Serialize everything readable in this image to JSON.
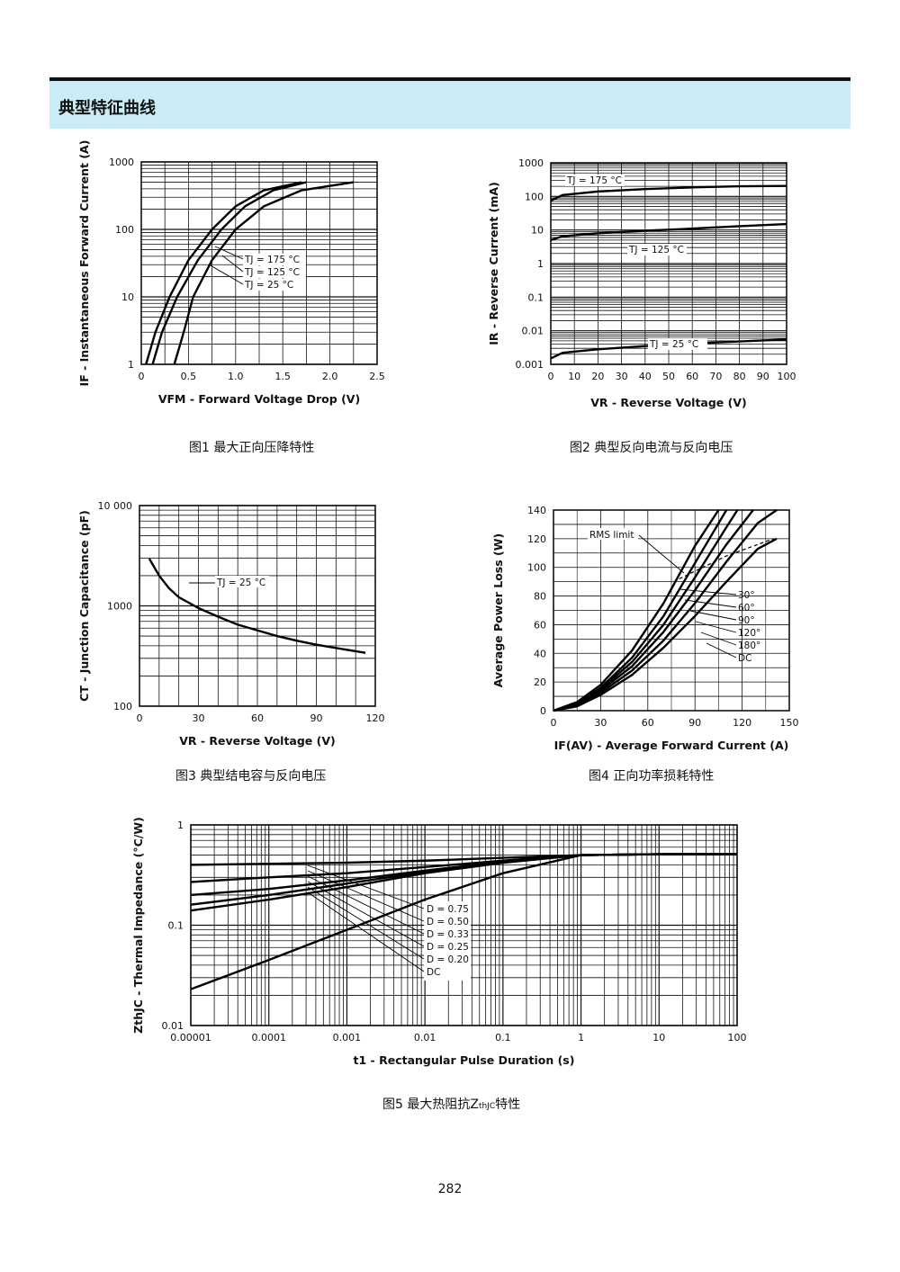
{
  "header": {
    "title": "典型特征曲线"
  },
  "page_number": "282",
  "captions": {
    "fig1": "图1  最大正向压降特性",
    "fig2": "图2  典型反向电流与反向电压",
    "fig3": "图3  典型结电容与反向电压",
    "fig4": "图4  正向功率损耗特性",
    "fig5": "图5  最大热阻抗Z"
  },
  "chart_data": [
    {
      "id": "fig1",
      "type": "line",
      "xlabel": "VFM - Forward Voltage Drop (V)",
      "ylabel": "IF - Instantaneous Forward Current (A)",
      "xscale": "linear",
      "yscale": "log",
      "xlim": [
        0,
        2.5
      ],
      "ylim": [
        1,
        1000
      ],
      "xticks": [
        "0",
        "0.5",
        "1.0",
        "1.5",
        "2.0",
        "2.5"
      ],
      "yticks": [
        "1",
        "10",
        "100",
        "1000"
      ],
      "series": [
        {
          "name": "TJ = 175 °C",
          "x": [
            0.05,
            0.15,
            0.3,
            0.5,
            0.75,
            1.0,
            1.3,
            1.7
          ],
          "y": [
            1,
            3,
            10,
            35,
            100,
            220,
            380,
            500
          ]
        },
        {
          "name": "TJ = 125 °C",
          "x": [
            0.12,
            0.22,
            0.38,
            0.6,
            0.85,
            1.1,
            1.4,
            1.75
          ],
          "y": [
            1,
            3,
            10,
            35,
            100,
            220,
            380,
            500
          ]
        },
        {
          "name": "TJ = 25 °C",
          "x": [
            0.35,
            0.45,
            0.55,
            0.75,
            1.0,
            1.3,
            1.7,
            2.25
          ],
          "y": [
            1,
            3,
            10,
            35,
            100,
            220,
            380,
            500
          ]
        }
      ],
      "annotations": [
        "TJ = 175 °C",
        "TJ = 125 °C",
        "TJ = 25 °C"
      ]
    },
    {
      "id": "fig2",
      "type": "line",
      "xlabel": "VR - Reverse Voltage (V)",
      "ylabel": "IR - Reverse Current (mA)",
      "xscale": "linear",
      "yscale": "log",
      "xlim": [
        0,
        100
      ],
      "ylim": [
        0.001,
        1000
      ],
      "xticks": [
        "0",
        "10",
        "20",
        "30",
        "40",
        "50",
        "60",
        "70",
        "80",
        "90",
        "100"
      ],
      "yticks": [
        "0.001",
        "0.01",
        "0.1",
        "1",
        "10",
        "100",
        "1000"
      ],
      "series": [
        {
          "name": "TJ = 175 °C",
          "x": [
            0,
            5,
            20,
            40,
            60,
            80,
            100
          ],
          "y": [
            75,
            110,
            140,
            165,
            185,
            200,
            205
          ]
        },
        {
          "name": "TJ = 125 °C",
          "x": [
            0,
            5,
            20,
            40,
            60,
            80,
            100
          ],
          "y": [
            5,
            6.5,
            8,
            9.5,
            11,
            13,
            15
          ]
        },
        {
          "name": "TJ = 25 °C",
          "x": [
            0,
            5,
            20,
            40,
            60,
            80,
            100
          ],
          "y": [
            0.0015,
            0.0022,
            0.0028,
            0.0035,
            0.0042,
            0.0048,
            0.0055
          ]
        }
      ],
      "annotations": [
        "TJ = 175 °C",
        "TJ = 125 °C",
        "TJ = 25 °C"
      ]
    },
    {
      "id": "fig3",
      "type": "line",
      "xlabel": "VR - Reverse Voltage (V)",
      "ylabel": "CT - Junction Capacitance (pF)",
      "xscale": "linear",
      "yscale": "log",
      "xlim": [
        0,
        120
      ],
      "ylim": [
        100,
        10000
      ],
      "xticks": [
        "0",
        "30",
        "60",
        "90",
        "120"
      ],
      "yticks": [
        "100",
        "1000",
        "10 000"
      ],
      "series": [
        {
          "name": "TJ = 25 °C",
          "x": [
            5,
            10,
            15,
            20,
            30,
            40,
            50,
            60,
            70,
            80,
            90,
            100,
            115
          ],
          "y": [
            2950,
            2000,
            1500,
            1220,
            950,
            780,
            650,
            570,
            500,
            450,
            410,
            380,
            340
          ]
        }
      ],
      "annotations": [
        "TJ = 25 °C"
      ]
    },
    {
      "id": "fig4",
      "type": "line",
      "xlabel": "IF(AV) - Average Forward Current (A)",
      "ylabel": "Average Power Loss (W)",
      "xscale": "linear",
      "yscale": "linear",
      "xlim": [
        0,
        150
      ],
      "ylim": [
        0,
        140
      ],
      "xticks": [
        "0",
        "30",
        "60",
        "90",
        "120",
        "150"
      ],
      "yticks": [
        "0",
        "20",
        "40",
        "60",
        "80",
        "100",
        "120",
        "140"
      ],
      "series": [
        {
          "name": "30°",
          "x": [
            0,
            15,
            30,
            50,
            70,
            90,
            105
          ],
          "y": [
            0,
            6,
            18,
            42,
            75,
            115,
            140
          ]
        },
        {
          "name": "60°",
          "x": [
            0,
            15,
            30,
            50,
            70,
            90,
            110
          ],
          "y": [
            0,
            5,
            16,
            37,
            66,
            103,
            140
          ]
        },
        {
          "name": "90°",
          "x": [
            0,
            15,
            30,
            50,
            70,
            90,
            110,
            117
          ],
          "y": [
            0,
            4.5,
            15,
            34,
            60,
            93,
            128,
            140
          ]
        },
        {
          "name": "120°",
          "x": [
            0,
            15,
            30,
            50,
            70,
            90,
            110,
            127
          ],
          "y": [
            0,
            4,
            14,
            31,
            55,
            84,
            116,
            140
          ]
        },
        {
          "name": "180°",
          "x": [
            0,
            15,
            30,
            50,
            70,
            90,
            110,
            130,
            142
          ],
          "y": [
            0,
            3.5,
            12.5,
            28,
            49,
            75,
            104,
            131,
            140
          ]
        },
        {
          "name": "DC",
          "x": [
            0,
            15,
            30,
            50,
            70,
            90,
            110,
            130,
            142
          ],
          "y": [
            0,
            3,
            11,
            25,
            44,
            66,
            90,
            113,
            120
          ]
        }
      ],
      "rms_limit": {
        "name": "RMS limit",
        "x": [
          80,
          95,
          110,
          125,
          140
        ],
        "y": [
          92,
          100,
          108,
          114,
          120
        ]
      },
      "annotations": [
        "RMS limit",
        "30°",
        "60°",
        "90°",
        "120°",
        "180°",
        "DC"
      ]
    },
    {
      "id": "fig5",
      "type": "line",
      "xlabel": "t1 - Rectangular Pulse Duration (s)",
      "ylabel": "ZthJC - Thermal Impedance (°C/W)",
      "xscale": "log",
      "yscale": "log",
      "xlim": [
        1e-05,
        100
      ],
      "ylim": [
        0.01,
        1
      ],
      "xticks": [
        "0.00001",
        "0.0001",
        "0.001",
        "0.01",
        "0.1",
        "1",
        "10",
        "100"
      ],
      "yticks": [
        "0.01",
        "0.1",
        "1"
      ],
      "series": [
        {
          "name": "D = 0.75",
          "x": [
            1e-05,
            0.0001,
            0.001,
            0.01,
            0.1,
            1,
            10,
            100
          ],
          "y": [
            0.4,
            0.41,
            0.42,
            0.44,
            0.47,
            0.5,
            0.51,
            0.51
          ]
        },
        {
          "name": "D = 0.50",
          "x": [
            1e-05,
            0.0001,
            0.001,
            0.01,
            0.1,
            1,
            10,
            100
          ],
          "y": [
            0.27,
            0.3,
            0.33,
            0.38,
            0.44,
            0.5,
            0.51,
            0.51
          ]
        },
        {
          "name": "D = 0.33",
          "x": [
            1e-05,
            0.0001,
            0.001,
            0.01,
            0.1,
            1,
            10,
            100
          ],
          "y": [
            0.2,
            0.23,
            0.28,
            0.35,
            0.43,
            0.5,
            0.51,
            0.51
          ]
        },
        {
          "name": "D = 0.25",
          "x": [
            1e-05,
            0.0001,
            0.001,
            0.01,
            0.1,
            1,
            10,
            100
          ],
          "y": [
            0.16,
            0.2,
            0.26,
            0.34,
            0.43,
            0.5,
            0.51,
            0.51
          ]
        },
        {
          "name": "D = 0.20",
          "x": [
            1e-05,
            0.0001,
            0.001,
            0.01,
            0.1,
            1,
            10,
            100
          ],
          "y": [
            0.14,
            0.18,
            0.24,
            0.33,
            0.42,
            0.5,
            0.51,
            0.51
          ]
        },
        {
          "name": "DC",
          "x": [
            1e-05,
            0.0001,
            0.001,
            0.01,
            0.1,
            1,
            10,
            100
          ],
          "y": [
            0.023,
            0.045,
            0.09,
            0.18,
            0.33,
            0.5,
            0.51,
            0.51
          ]
        }
      ],
      "annotations": [
        "D = 0.75",
        "D = 0.50",
        "D = 0.33",
        "D = 0.25",
        "D = 0.20",
        "DC"
      ]
    }
  ]
}
